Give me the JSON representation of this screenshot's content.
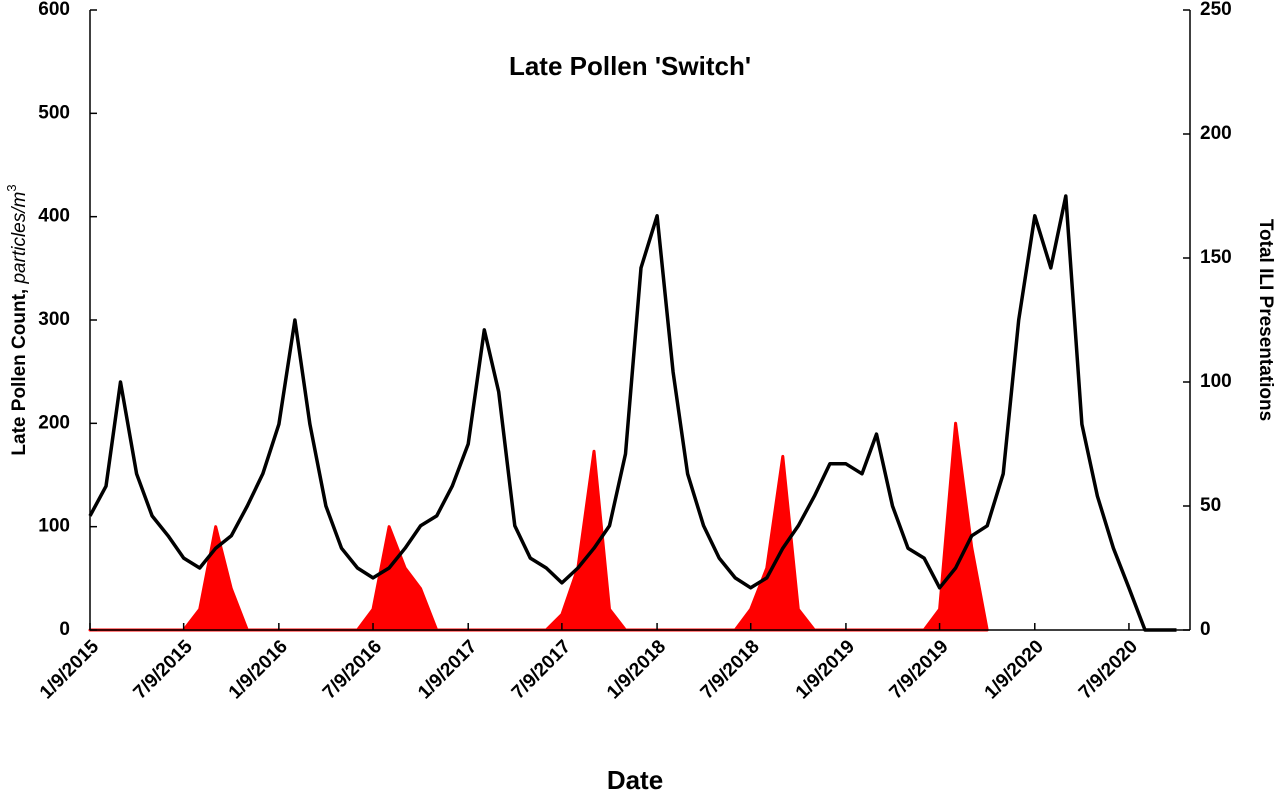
{
  "chart_data": {
    "type": "line",
    "title": "Late Pollen 'Switch'",
    "xlabel": "Date",
    "ylabel": {
      "main": "Late Pollen Count, ",
      "unit": "particles/m",
      "sup": "3"
    },
    "y2label": "Total ILI Presentations",
    "x": [
      "1/9/2015",
      "2/9/2015",
      "3/9/2015",
      "4/9/2015",
      "5/9/2015",
      "6/9/2015",
      "7/9/2015",
      "8/9/2015",
      "9/9/2015",
      "10/9/2015",
      "11/9/2015",
      "12/9/2015",
      "1/9/2016",
      "2/9/2016",
      "3/9/2016",
      "4/9/2016",
      "5/9/2016",
      "6/9/2016",
      "7/9/2016",
      "8/9/2016",
      "9/9/2016",
      "10/9/2016",
      "11/9/2016",
      "12/9/2016",
      "1/9/2017",
      "2/9/2017",
      "3/9/2017",
      "4/9/2017",
      "5/9/2017",
      "6/9/2017",
      "7/9/2017",
      "8/9/2017",
      "9/9/2017",
      "10/9/2017",
      "11/9/2017",
      "12/9/2017",
      "1/9/2018",
      "2/9/2018",
      "3/9/2018",
      "4/9/2018",
      "5/9/2018",
      "6/9/2018",
      "7/9/2018",
      "8/9/2018",
      "9/9/2018",
      "10/9/2018",
      "11/9/2018",
      "12/9/2018",
      "1/9/2019",
      "2/9/2019",
      "3/9/2019",
      "4/9/2019",
      "5/9/2019",
      "6/9/2019",
      "7/9/2019",
      "8/9/2019",
      "9/9/2019",
      "10/9/2019",
      "11/9/2019",
      "12/9/2019",
      "1/9/2020",
      "2/9/2020",
      "3/9/2020",
      "4/9/2020",
      "5/9/2020",
      "6/9/2020",
      "7/9/2020",
      "8/9/2020",
      "9/9/2020",
      "10/9/2020"
    ],
    "xlim": [
      "1/9/2015",
      "11/4/2020"
    ],
    "xticks": [
      "1/9/2015",
      "7/9/2015",
      "1/9/2016",
      "7/9/2016",
      "1/9/2017",
      "7/9/2017",
      "1/9/2018",
      "7/9/2018",
      "1/9/2019",
      "7/9/2019",
      "1/9/2020",
      "7/9/2020"
    ],
    "ylim": [
      0,
      600
    ],
    "yticks": [
      0,
      100,
      200,
      300,
      400,
      500,
      600
    ],
    "y2lim": [
      0,
      250
    ],
    "y2ticks": [
      0,
      50,
      100,
      150,
      200,
      250
    ],
    "series": [
      {
        "name": "Late Pollen",
        "color": "#ff0000",
        "fill": true,
        "values": [
          0,
          0,
          0,
          0,
          0,
          0,
          0,
          20,
          100,
          40,
          0,
          0,
          0,
          0,
          0,
          0,
          0,
          0,
          20,
          100,
          60,
          40,
          0,
          0,
          0,
          0,
          0,
          0,
          0,
          0,
          15,
          60,
          173,
          20,
          0,
          0,
          0,
          0,
          0,
          0,
          0,
          0,
          20,
          60,
          168,
          20,
          0,
          0,
          0,
          0,
          0,
          0,
          0,
          0,
          20,
          200,
          80,
          0,
          null,
          null,
          null,
          null,
          null,
          null,
          null,
          null,
          null,
          null,
          null,
          null
        ]
      },
      {
        "name": "Total ILI Presentations",
        "color": "#000000",
        "axis": "y2",
        "values": [
          46,
          58,
          100,
          63,
          46,
          38,
          29,
          25,
          33,
          38,
          50,
          63,
          83,
          125,
          83,
          50,
          33,
          25,
          21,
          25,
          33,
          42,
          46,
          58,
          75,
          121,
          96,
          42,
          29,
          25,
          19,
          25,
          33,
          42,
          71,
          146,
          167,
          104,
          63,
          42,
          29,
          21,
          17,
          21,
          33,
          42,
          54,
          67,
          67,
          63,
          79,
          50,
          33,
          29,
          17,
          25,
          38,
          42,
          63,
          125,
          167,
          146,
          175,
          83,
          54,
          33,
          17,
          0,
          0,
          0
        ]
      }
    ]
  }
}
